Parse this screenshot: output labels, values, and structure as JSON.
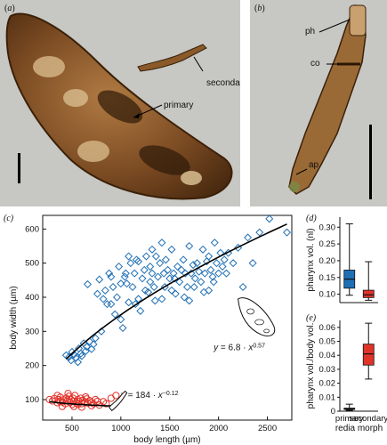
{
  "panel_a": {
    "label": "a",
    "annotations": {
      "secondary": "secondary",
      "primary": "primary"
    }
  },
  "panel_b": {
    "label": "b",
    "annotations": {
      "ph": "ph",
      "co": "co",
      "ap": "ap"
    }
  },
  "colors": {
    "blue": "#1f6fb5",
    "red": "#e0332a",
    "photo_bg": "#c7c7c3",
    "worm_brown": "#7a4a22"
  },
  "chart_data": [
    {
      "panel": "c",
      "type": "scatter",
      "xlabel": "body length (µm)",
      "ylabel": "body width (µm)",
      "xlim": [
        200,
        2750
      ],
      "ylim": [
        40,
        640
      ],
      "xticks": [
        500,
        1000,
        1500,
        2000,
        2500
      ],
      "yticks": [
        100,
        200,
        300,
        400,
        500,
        600
      ],
      "series": [
        {
          "name": "secondary",
          "marker": "circle",
          "color": "#e0332a",
          "points": [
            [
              270,
              100
            ],
            [
              300,
              96
            ],
            [
              320,
              103
            ],
            [
              350,
              91
            ],
            [
              360,
              100
            ],
            [
              380,
              107
            ],
            [
              400,
              93
            ],
            [
              410,
              99
            ],
            [
              430,
              88
            ],
            [
              440,
              104
            ],
            [
              450,
              96
            ],
            [
              470,
              110
            ],
            [
              480,
              92
            ],
            [
              490,
              100
            ],
            [
              500,
              86
            ],
            [
              510,
              104
            ],
            [
              520,
              95
            ],
            [
              530,
              112
            ],
            [
              545,
              90
            ],
            [
              560,
              100
            ],
            [
              570,
              95
            ],
            [
              590,
              104
            ],
            [
              600,
              88
            ],
            [
              610,
              98
            ],
            [
              630,
              93
            ],
            [
              650,
              102
            ],
            [
              660,
              90
            ],
            [
              680,
              97
            ],
            [
              700,
              92
            ],
            [
              720,
              88
            ],
            [
              740,
              100
            ],
            [
              760,
              95
            ],
            [
              780,
              84
            ],
            [
              820,
              94
            ],
            [
              850,
              88
            ],
            [
              900,
              104
            ],
            [
              950,
              112
            ],
            [
              400,
              80
            ],
            [
              520,
              80
            ],
            [
              600,
              78
            ],
            [
              350,
              112
            ],
            [
              460,
              118
            ],
            [
              380,
              94
            ],
            [
              560,
              86
            ],
            [
              640,
              108
            ],
            [
              700,
              82
            ]
          ]
        },
        {
          "name": "primary",
          "marker": "diamond",
          "color": "#1f6fb5",
          "points": [
            [
              440,
              230
            ],
            [
              470,
              225
            ],
            [
              490,
              215
            ],
            [
              500,
              240
            ],
            [
              520,
              232
            ],
            [
              540,
              222
            ],
            [
              560,
              210
            ],
            [
              570,
              250
            ],
            [
              590,
              235
            ],
            [
              600,
              228
            ],
            [
              620,
              265
            ],
            [
              640,
              242
            ],
            [
              650,
              255
            ],
            [
              660,
              438
            ],
            [
              680,
              270
            ],
            [
              700,
              248
            ],
            [
              720,
              262
            ],
            [
              740,
              280
            ],
            [
              760,
              410
            ],
            [
              780,
              452
            ],
            [
              800,
              300
            ],
            [
              820,
              395
            ],
            [
              840,
              420
            ],
            [
              860,
              380
            ],
            [
              880,
              470
            ],
            [
              900,
              460
            ],
            [
              920,
              430
            ],
            [
              940,
              350
            ],
            [
              960,
              400
            ],
            [
              980,
              490
            ],
            [
              1000,
              440
            ],
            [
              1020,
              310
            ],
            [
              1040,
              460
            ],
            [
              1060,
              440
            ],
            [
              1080,
              385
            ],
            [
              1100,
              500
            ],
            [
              1120,
              430
            ],
            [
              1140,
              470
            ],
            [
              1160,
              510
            ],
            [
              1180,
              395
            ],
            [
              1200,
              360
            ],
            [
              1220,
              455
            ],
            [
              1240,
              480
            ],
            [
              1260,
              520
            ],
            [
              1280,
              415
            ],
            [
              1300,
              490
            ],
            [
              1320,
              470
            ],
            [
              1340,
              430
            ],
            [
              1360,
              520
            ],
            [
              1380,
              460
            ],
            [
              1400,
              500
            ],
            [
              1420,
              395
            ],
            [
              1440,
              470
            ],
            [
              1460,
              510
            ],
            [
              1480,
              480
            ],
            [
              1500,
              455
            ],
            [
              1520,
              540
            ],
            [
              1540,
              470
            ],
            [
              1560,
              410
            ],
            [
              1580,
              490
            ],
            [
              1600,
              445
            ],
            [
              1620,
              480
            ],
            [
              1640,
              510
            ],
            [
              1660,
              470
            ],
            [
              1680,
              430
            ],
            [
              1700,
              550
            ],
            [
              1720,
              470
            ],
            [
              1740,
              495
            ],
            [
              1760,
              455
            ],
            [
              1780,
              500
            ],
            [
              1800,
              475
            ],
            [
              1820,
              445
            ],
            [
              1840,
              540
            ],
            [
              1860,
              470
            ],
            [
              1880,
              505
            ],
            [
              1900,
              520
            ],
            [
              1920,
              480
            ],
            [
              1940,
              460
            ],
            [
              1960,
              560
            ],
            [
              1980,
              500
            ],
            [
              2000,
              470
            ],
            [
              2020,
              530
            ],
            [
              2040,
              490
            ],
            [
              2060,
              510
            ],
            [
              2080,
              470
            ],
            [
              2100,
              530
            ],
            [
              2150,
              500
            ],
            [
              2200,
              545
            ],
            [
              2250,
              430
            ],
            [
              2300,
              575
            ],
            [
              2350,
              500
            ],
            [
              2420,
              590
            ],
            [
              2520,
              630
            ],
            [
              2700,
              590
            ],
            [
              1150,
              380
            ],
            [
              1250,
              420
            ],
            [
              1350,
              390
            ],
            [
              1450,
              430
            ],
            [
              1550,
              455
            ],
            [
              1650,
              400
            ],
            [
              1750,
              430
            ],
            [
              1850,
              415
            ],
            [
              1950,
              445
            ],
            [
              1050,
              470
            ],
            [
              1180,
              505
            ],
            [
              1320,
              540
            ],
            [
              1420,
              560
            ],
            [
              1520,
              420
            ],
            [
              1000,
              335
            ],
            [
              900,
              380
            ],
            [
              1080,
              520
            ],
            [
              1300,
              445
            ],
            [
              1700,
              390
            ],
            [
              1900,
              420
            ]
          ]
        }
      ],
      "fits": [
        {
          "series": "primary",
          "coef": 6.8,
          "exp": 0.57,
          "range": [
            440,
            2700
          ],
          "label": "y = 6.8 · x^0.57"
        },
        {
          "series": "secondary",
          "coef": 184,
          "exp": -0.12,
          "range": [
            270,
            950
          ],
          "label": "y = 184 · x^−0.12"
        }
      ]
    },
    {
      "panel": "d",
      "type": "box",
      "ylabel": "pharynx vol. (nl)",
      "ylim": [
        0.075,
        0.33
      ],
      "yticks": [
        0.1,
        0.15,
        0.2,
        0.25,
        0.3
      ],
      "categories": [
        "primary",
        "secondary"
      ],
      "boxes": [
        {
          "name": "primary",
          "color": "#1f6fb5",
          "whisker_low": 0.097,
          "q1": 0.118,
          "median": 0.145,
          "q3": 0.172,
          "whisker_high": 0.31
        },
        {
          "name": "secondary",
          "color": "#e0332a",
          "whisker_low": 0.082,
          "q1": 0.09,
          "median": 0.098,
          "q3": 0.112,
          "whisker_high": 0.197
        }
      ]
    },
    {
      "panel": "e",
      "type": "box",
      "ylabel": "pharynx vol./body vol.",
      "xlabel": "redia morph",
      "ylim": [
        0,
        0.065
      ],
      "yticks": [
        0,
        0.01,
        0.02,
        0.03,
        0.04,
        0.05,
        0.06
      ],
      "categories": [
        "primary",
        "secondary"
      ],
      "boxes": [
        {
          "name": "primary",
          "color": "#1f6fb5",
          "whisker_low": 0.0006,
          "q1": 0.0012,
          "median": 0.0016,
          "q3": 0.0022,
          "whisker_high": 0.005
        },
        {
          "name": "secondary",
          "color": "#e0332a",
          "whisker_low": 0.023,
          "q1": 0.033,
          "median": 0.041,
          "q3": 0.048,
          "whisker_high": 0.063
        }
      ]
    }
  ]
}
